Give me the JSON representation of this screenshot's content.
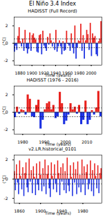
{
  "title": "El Niño 3.4 Index",
  "chart_data": [
    {
      "type": "bar",
      "title": "HADISST (Full Record)",
      "xlabel": "Time (years)",
      "ylabel": "(°C)",
      "x": [
        1870,
        1872,
        1874,
        1876,
        1878,
        1880,
        1882,
        1884,
        1886,
        1888,
        1890,
        1892,
        1894,
        1896,
        1898,
        1900,
        1902,
        1904,
        1906,
        1908,
        1910,
        1912,
        1914,
        1916,
        1918,
        1920,
        1922,
        1924,
        1926,
        1928,
        1930,
        1932,
        1934,
        1936,
        1938,
        1940,
        1942,
        1944,
        1946,
        1948,
        1950,
        1952,
        1954,
        1956,
        1958,
        1960,
        1962,
        1964,
        1966,
        1968,
        1970,
        1972,
        1974,
        1976,
        1978,
        1980,
        1982,
        1984,
        1986,
        1988,
        1990,
        1992,
        1994,
        1996,
        1998,
        2000,
        2002,
        2004,
        2006,
        2008,
        2010,
        2012,
        2014,
        2016
      ],
      "values": [
        -1.0,
        -0.3,
        -0.8,
        0.8,
        1.8,
        0.2,
        -0.4,
        0.5,
        -0.9,
        1.5,
        -0.6,
        -1.2,
        -0.7,
        1.2,
        -0.9,
        0.9,
        1.1,
        0.6,
        0.4,
        -1.0,
        -1.1,
        0.9,
        1.0,
        -1.3,
        1.4,
        -0.3,
        -0.6,
        -0.9,
        0.7,
        -0.2,
        1.1,
        0.3,
        -0.4,
        0.1,
        -0.8,
        1.5,
        -1.0,
        -0.4,
        0.3,
        -0.4,
        -1.3,
        0.2,
        -0.9,
        -0.8,
        1.4,
        -0.1,
        -0.3,
        -0.9,
        1.1,
        -0.5,
        -1.2,
        2.0,
        -1.8,
        -0.5,
        0.3,
        0.2,
        2.2,
        -0.9,
        0.9,
        -1.8,
        0.3,
        1.5,
        1.0,
        -0.8,
        2.3,
        -1.5,
        1.1,
        0.6,
        0.8,
        -1.3,
        -1.5,
        0.2,
        0.5,
        2.5
      ],
      "xlim": [
        1870,
        2018
      ],
      "xticks": [
        1880,
        1900,
        1920,
        1940,
        1960,
        1980,
        2000
      ],
      "ylim": [
        -2.5,
        3
      ],
      "yticks": [
        -2,
        0,
        2
      ],
      "thresholds": [
        -0.5,
        0.5
      ],
      "line_style": "dashed",
      "colors": [
        "#e8201c",
        "#1a2fe0"
      ]
    },
    {
      "type": "bar",
      "title": "HADISST (1976 - 2016)",
      "xlabel": "Time (years)",
      "ylabel": "(°C)",
      "x": [
        1976,
        1977,
        1978,
        1979,
        1980,
        1981,
        1982,
        1983,
        1984,
        1985,
        1986,
        1987,
        1988,
        1989,
        1990,
        1991,
        1992,
        1993,
        1994,
        1995,
        1996,
        1997,
        1998,
        1999,
        2000,
        2001,
        2002,
        2003,
        2004,
        2005,
        2006,
        2007,
        2008,
        2009,
        2010,
        2011,
        2012,
        2013,
        2014,
        2015,
        2016
      ],
      "values": [
        -0.6,
        0.6,
        -0.2,
        0.3,
        0.2,
        -0.3,
        2.0,
        1.5,
        -0.5,
        -0.6,
        0.8,
        1.4,
        -1.9,
        -0.9,
        0.3,
        1.0,
        1.2,
        0.3,
        0.8,
        -0.7,
        -0.5,
        2.3,
        1.0,
        -1.4,
        -1.0,
        -0.3,
        1.0,
        0.3,
        0.6,
        -0.2,
        0.8,
        -1.4,
        -0.9,
        1.3,
        -1.4,
        -0.9,
        0.2,
        -0.3,
        0.5,
        2.4,
        -0.5
      ],
      "xlim": [
        1976,
        2017
      ],
      "xticks": [
        1980,
        1990,
        2000,
        2010
      ],
      "ylim": [
        -2.5,
        3
      ],
      "yticks": [
        -2,
        0,
        2
      ],
      "thresholds": [
        -0.5,
        0.5
      ],
      "line_style": "dashed",
      "colors": [
        "#e8201c",
        "#1a2fe0"
      ]
    },
    {
      "type": "bar",
      "title": "v2.LR.historical_0101",
      "xlabel": "Time (years)",
      "ylabel": "(°C)",
      "x": [
        1850,
        1852,
        1854,
        1856,
        1858,
        1860,
        1862,
        1864,
        1866,
        1868,
        1870,
        1872,
        1874,
        1876,
        1878,
        1880,
        1882,
        1884,
        1886,
        1888,
        1890,
        1892,
        1894,
        1896,
        1898,
        1900,
        1902,
        1904,
        1906,
        1908,
        1910,
        1912,
        1914,
        1916,
        1918,
        1920,
        1922,
        1924,
        1926,
        1928,
        1930,
        1932,
        1934,
        1936,
        1938,
        1940,
        1942,
        1944,
        1946,
        1948,
        1950,
        1952,
        1954,
        1956,
        1958,
        1960,
        1962,
        1964,
        1966,
        1968,
        1970,
        1972,
        1974,
        1976,
        1978,
        1980,
        1982,
        1984,
        1986,
        1988,
        1990,
        1992,
        1994,
        1996,
        1998,
        2000,
        2002,
        2004,
        2006,
        2008,
        2010,
        2012,
        2014
      ],
      "values": [
        0.8,
        -1.2,
        1.5,
        -0.4,
        -1.6,
        1.9,
        0.3,
        -1.1,
        1.2,
        -1.8,
        0.6,
        1.7,
        -0.9,
        -1.4,
        2.1,
        -0.3,
        0.9,
        -1.5,
        1.3,
        0.2,
        -1.7,
        1.6,
        -0.6,
        -1.2,
        1.8,
        0.4,
        -1.3,
        1.1,
        -0.8,
        2.0,
        -1.6,
        0.5,
        1.4,
        -1.0,
        -1.9,
        1.7,
        0.3,
        -1.1,
        1.5,
        -0.5,
        -1.4,
        1.9,
        0.6,
        -1.7,
        1.2,
        -0.3,
        1.6,
        -1.2,
        0.8,
        -1.5,
        2.2,
        -0.7,
        -1.3,
        1.4,
        0.2,
        -1.8,
        1.7,
        -0.4,
        1.0,
        -1.6,
        1.8,
        -0.9,
        0.4,
        -1.4,
        2.0,
        -0.6,
        1.3,
        -1.7,
        0.7,
        1.5,
        -1.1,
        -0.5,
        1.9,
        -1.3,
        0.9,
        -1.8,
        1.6,
        0.3,
        -1.0,
        1.4,
        -1.5,
        0.6,
        1.1
      ],
      "xlim": [
        1850,
        2016
      ],
      "xticks": [
        1860,
        1900,
        1940,
        1980
      ],
      "ylim": [
        -2.5,
        2.5
      ],
      "yticks": [
        -2,
        0,
        2
      ],
      "thresholds": [
        -0.5,
        0.5
      ],
      "line_style": "dashed",
      "colors": [
        "#e8201c",
        "#1a2fe0"
      ]
    }
  ]
}
